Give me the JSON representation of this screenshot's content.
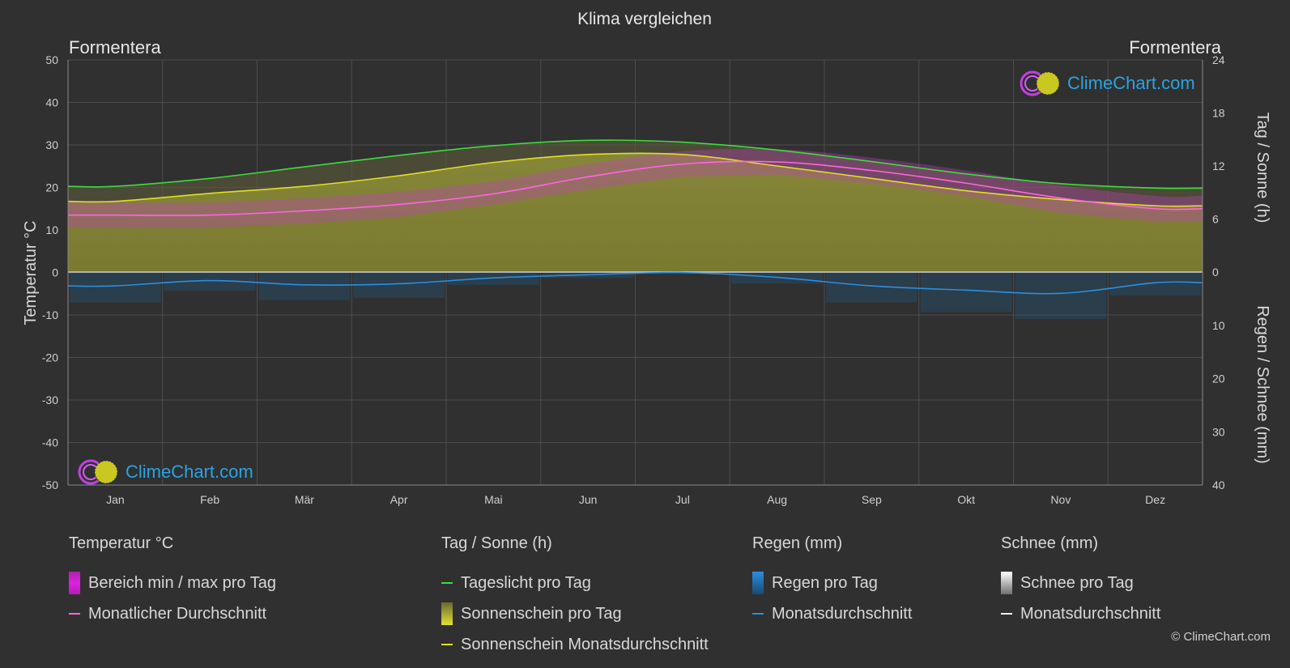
{
  "title": "Klima vergleichen",
  "location_left": "Formentera",
  "location_right": "Formentera",
  "logo_text": "ClimeChart.com",
  "copyright": "© ClimeChart.com",
  "chart_data": {
    "type": "area",
    "categories": [
      "Jan",
      "Feb",
      "Mär",
      "Apr",
      "Mai",
      "Jun",
      "Jul",
      "Aug",
      "Sep",
      "Okt",
      "Nov",
      "Dez"
    ],
    "y_left": {
      "label": "Temperatur °C",
      "ticks": [
        50,
        40,
        30,
        20,
        10,
        0,
        -10,
        -20,
        -30,
        -40,
        -50
      ],
      "range": [
        -50,
        50
      ]
    },
    "y_right_top": {
      "label": "Tag / Sonne (h)",
      "ticks": [
        24,
        18,
        12,
        6,
        0
      ],
      "range": [
        0,
        24
      ]
    },
    "y_right_bottom": {
      "label": "Regen / Schnee (mm)",
      "ticks": [
        0,
        10,
        20,
        30,
        40
      ],
      "range": [
        0,
        40
      ]
    },
    "series": [
      {
        "name": "Tageslicht pro Tag",
        "axis": "sun",
        "color": "#3ddc3d",
        "values": [
          9.7,
          10.6,
          11.9,
          13.2,
          14.3,
          14.9,
          14.7,
          13.8,
          12.5,
          11.1,
          10.0,
          9.5
        ]
      },
      {
        "name": "Sonnenschein Monatsdurchschnitt",
        "axis": "sun",
        "color": "#e0e020",
        "values": [
          8.0,
          8.9,
          9.7,
          10.9,
          12.4,
          13.3,
          13.3,
          12.0,
          10.6,
          9.2,
          8.2,
          7.5
        ]
      },
      {
        "name": "Monatlicher Durchschnitt",
        "axis": "temp",
        "color": "#ff66e0",
        "values": [
          13.5,
          13.5,
          14.5,
          16.0,
          18.5,
          22.5,
          25.5,
          26.0,
          24.0,
          21.0,
          17.5,
          15.0
        ]
      },
      {
        "name": "Monatsdurchschnitt",
        "axis": "rain",
        "color": "#2a8ee0",
        "values": [
          2.6,
          1.6,
          2.4,
          2.2,
          1.1,
          0.5,
          0.1,
          1.0,
          2.6,
          3.4,
          4.0,
          2.0
        ]
      }
    ],
    "temp_range": {
      "min": [
        10.5,
        10.5,
        11.5,
        13.0,
        16.0,
        19.5,
        22.5,
        23.0,
        21.0,
        18.0,
        14.0,
        12.0
      ],
      "max": [
        16.5,
        16.5,
        17.5,
        19.0,
        21.5,
        25.5,
        28.5,
        29.0,
        27.0,
        24.0,
        20.5,
        18.0
      ]
    },
    "grid": true
  },
  "legend": {
    "groups": [
      {
        "title": "Temperatur °C",
        "items": [
          {
            "label": "Bereich min / max pro Tag",
            "kind": "box",
            "color": "#e020e0"
          },
          {
            "label": "Monatlicher Durchschnitt",
            "kind": "line",
            "color": "#ff66e0"
          }
        ]
      },
      {
        "title": "Tag / Sonne (h)",
        "items": [
          {
            "label": "Tageslicht pro Tag",
            "kind": "line",
            "color": "#3ddc3d"
          },
          {
            "label": "Sonnenschein pro Tag",
            "kind": "box",
            "color": "#d8d830"
          },
          {
            "label": "Sonnenschein Monatsdurchschnitt",
            "kind": "line",
            "color": "#e0e020"
          }
        ]
      },
      {
        "title": "Regen (mm)",
        "items": [
          {
            "label": "Regen pro Tag",
            "kind": "box",
            "color": "#2a8ee0"
          },
          {
            "label": "Monatsdurchschnitt",
            "kind": "line",
            "color": "#2a8ee0"
          }
        ]
      },
      {
        "title": "Schnee (mm)",
        "items": [
          {
            "label": "Schnee pro Tag",
            "kind": "box",
            "color": "#e0e0e0"
          },
          {
            "label": "Monatsdurchschnitt",
            "kind": "line",
            "color": "#ffffff"
          }
        ]
      }
    ]
  }
}
